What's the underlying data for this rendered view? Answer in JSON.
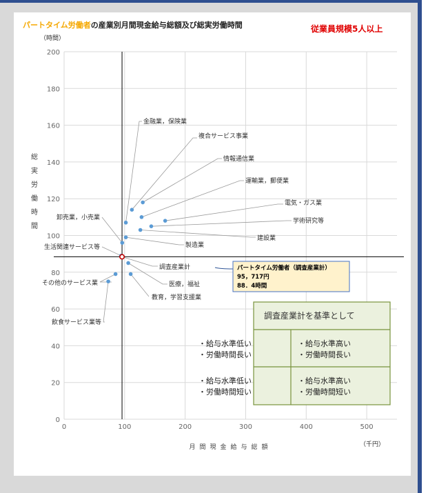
{
  "chart_data": {
    "type": "scatter",
    "title_highlight": "パートタイム労働者",
    "title_rest": "の産業別月間現金給与総額及び総実労働時間",
    "subtitle": "従業員規模5人以上",
    "ylabel": "総実労働時間",
    "yunit": "（時間）",
    "xlabel": "月間現金給与総額",
    "xunit": "（千円）",
    "xlim": [
      0,
      550
    ],
    "ylim": [
      0,
      200
    ],
    "xticks": [
      0,
      100,
      200,
      300,
      400,
      500
    ],
    "yticks": [
      0,
      20,
      40,
      60,
      80,
      100,
      120,
      140,
      160,
      180,
      200
    ],
    "grid": true,
    "reference": {
      "x": 95.717,
      "y": 88.4
    },
    "points": [
      {
        "name": "金融業，保険業",
        "x": 102,
        "y": 107
      },
      {
        "name": "複合サービス事業",
        "x": 112,
        "y": 114
      },
      {
        "name": "情報通信業",
        "x": 130,
        "y": 118
      },
      {
        "name": "運輸業，郵便業",
        "x": 128,
        "y": 110
      },
      {
        "name": "電気・ガス業",
        "x": 167,
        "y": 108
      },
      {
        "name": "学術研究等",
        "x": 144,
        "y": 105
      },
      {
        "name": "建設業",
        "x": 126,
        "y": 103
      },
      {
        "name": "卸売業，小売業",
        "x": 96,
        "y": 96
      },
      {
        "name": "製造業",
        "x": 102,
        "y": 99
      },
      {
        "name": "生活関連サービス等",
        "x": 94,
        "y": 89
      },
      {
        "name": "調査産業計",
        "x": 95.717,
        "y": 88.4,
        "reference": true
      },
      {
        "name": "医療，福祉",
        "x": 106,
        "y": 85
      },
      {
        "name": "教育，学習支援業",
        "x": 110,
        "y": 79
      },
      {
        "name": "その他のサービス業",
        "x": 85,
        "y": 79
      },
      {
        "name": "飲食サービス業等",
        "x": 73,
        "y": 75
      }
    ],
    "callout": {
      "line1": "パートタイム労働者（調査産業計）",
      "line2": "95，717円",
      "line3": "88．4時間"
    },
    "quadrant_box": {
      "title": "調査産業計を基準として",
      "top_left": [
        "・給与水準低い",
        "・労働時間長い"
      ],
      "top_right": [
        "・給与水準高い",
        "・労働時間長い"
      ],
      "bottom_left": [
        "・給与水準低い",
        "・労働時間短い"
      ],
      "bottom_right": [
        "・給与水準高い",
        "・労働時間短い"
      ]
    },
    "colors": {
      "highlight": "#f5a800",
      "subtitle": "#e00000",
      "point": "#5b9bd5",
      "reference": "#c00000",
      "callout_bg": "#fff2cc",
      "callout_border": "#4472c4",
      "quad_bg": "#ebf1de",
      "quad_border": "#77933c",
      "frame": "#2f4f8f"
    }
  }
}
